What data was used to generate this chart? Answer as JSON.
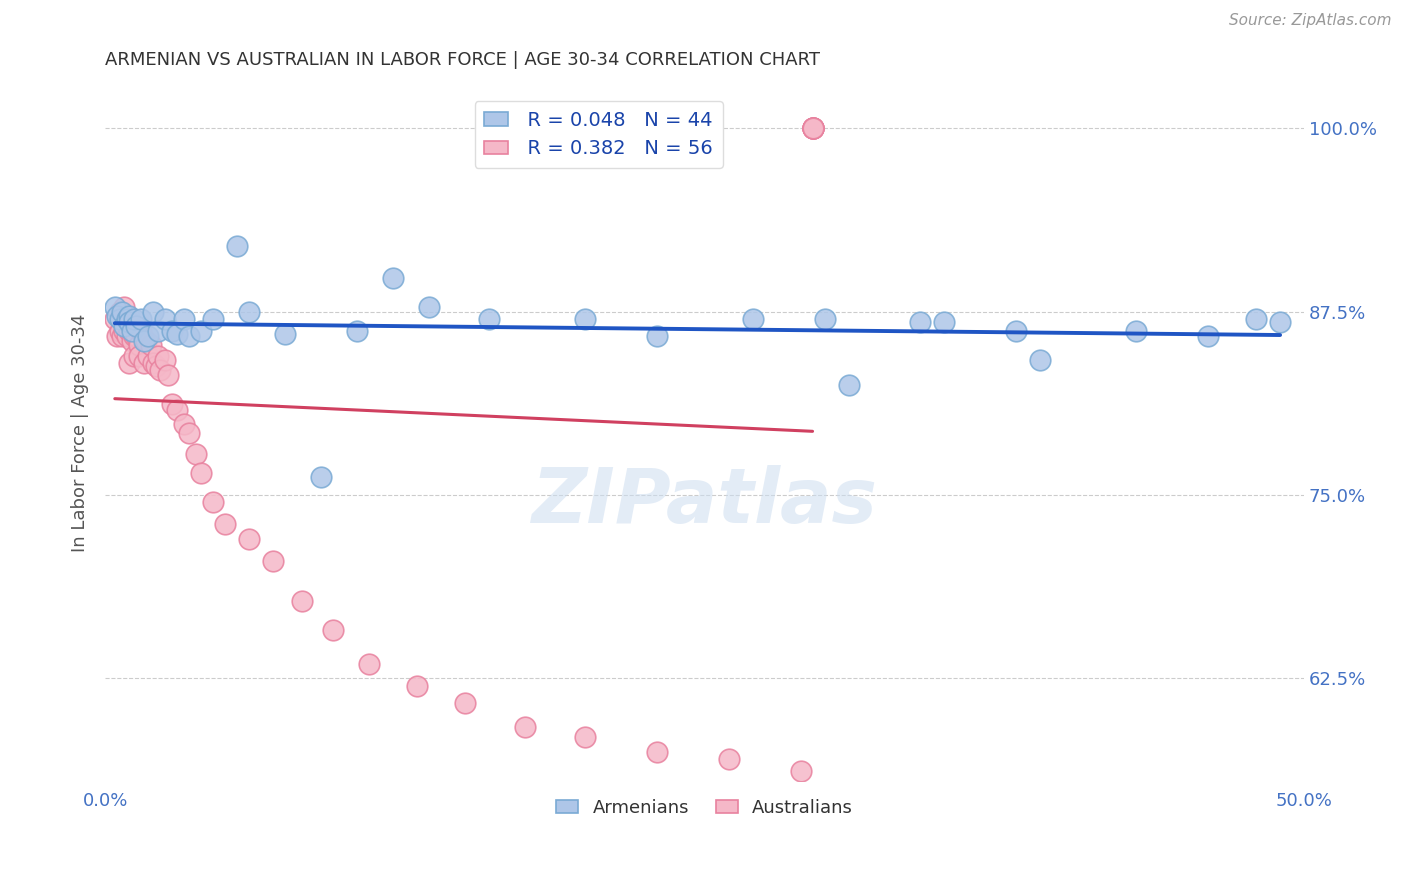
{
  "title": "ARMENIAN VS AUSTRALIAN IN LABOR FORCE | AGE 30-34 CORRELATION CHART",
  "source_text": "Source: ZipAtlas.com",
  "ylabel": "In Labor Force | Age 30-34",
  "xlim": [
    0.0,
    0.5
  ],
  "ylim": [
    0.555,
    1.03
  ],
  "xtick_positions": [
    0.0,
    0.1,
    0.2,
    0.3,
    0.4,
    0.5
  ],
  "xticklabels": [
    "0.0%",
    "",
    "",
    "",
    "",
    "50.0%"
  ],
  "ytick_positions": [
    0.625,
    0.75,
    0.875,
    1.0
  ],
  "ytick_labels": [
    "62.5%",
    "75.0%",
    "87.5%",
    "100.0%"
  ],
  "title_color": "#333333",
  "axis_color": "#4472c4",
  "background_color": "#ffffff",
  "watermark": "ZIPatlas",
  "legend_r1": "R = 0.048",
  "legend_n1": "N = 44",
  "legend_r2": "R = 0.382",
  "legend_n2": "N = 56",
  "armenian_color": "#aec6e8",
  "armenian_edge": "#7aaad4",
  "australian_color": "#f5b8c8",
  "australian_edge": "#e8819e",
  "line_blue": "#1f55c4",
  "line_pink": "#d04060",
  "arm_x": [
    0.004,
    0.005,
    0.006,
    0.007,
    0.008,
    0.009,
    0.01,
    0.01,
    0.011,
    0.012,
    0.013,
    0.015,
    0.016,
    0.018,
    0.02,
    0.022,
    0.025,
    0.028,
    0.03,
    0.033,
    0.035,
    0.04,
    0.045,
    0.055,
    0.06,
    0.075,
    0.09,
    0.105,
    0.12,
    0.135,
    0.16,
    0.2,
    0.23,
    0.27,
    0.31,
    0.35,
    0.39,
    0.43,
    0.46,
    0.48,
    0.3,
    0.34,
    0.38,
    0.49
  ],
  "arm_y": [
    0.878,
    0.872,
    0.87,
    0.875,
    0.865,
    0.87,
    0.872,
    0.868,
    0.862,
    0.87,
    0.865,
    0.87,
    0.855,
    0.858,
    0.875,
    0.862,
    0.87,
    0.862,
    0.86,
    0.87,
    0.858,
    0.862,
    0.87,
    0.92,
    0.875,
    0.86,
    0.762,
    0.862,
    0.898,
    0.878,
    0.87,
    0.87,
    0.858,
    0.87,
    0.825,
    0.868,
    0.842,
    0.862,
    0.858,
    0.87,
    0.87,
    0.868,
    0.862,
    0.868
  ],
  "aus_x": [
    0.004,
    0.005,
    0.006,
    0.006,
    0.007,
    0.007,
    0.008,
    0.008,
    0.009,
    0.009,
    0.01,
    0.01,
    0.011,
    0.011,
    0.012,
    0.012,
    0.013,
    0.014,
    0.014,
    0.015,
    0.016,
    0.017,
    0.018,
    0.019,
    0.02,
    0.021,
    0.022,
    0.023,
    0.025,
    0.026,
    0.028,
    0.03,
    0.033,
    0.035,
    0.038,
    0.04,
    0.045,
    0.05,
    0.06,
    0.07,
    0.082,
    0.095,
    0.11,
    0.13,
    0.15,
    0.175,
    0.2,
    0.23,
    0.26,
    0.29,
    0.295,
    0.295,
    0.295,
    0.295,
    0.295,
    0.295
  ],
  "aus_y": [
    0.87,
    0.858,
    0.875,
    0.862,
    0.87,
    0.858,
    0.878,
    0.862,
    0.858,
    0.87,
    0.862,
    0.84,
    0.862,
    0.855,
    0.858,
    0.845,
    0.858,
    0.852,
    0.845,
    0.862,
    0.84,
    0.855,
    0.845,
    0.852,
    0.84,
    0.838,
    0.845,
    0.835,
    0.842,
    0.832,
    0.812,
    0.808,
    0.798,
    0.792,
    0.778,
    0.765,
    0.745,
    0.73,
    0.72,
    0.705,
    0.678,
    0.658,
    0.635,
    0.62,
    0.608,
    0.592,
    0.585,
    0.575,
    0.57,
    0.562,
    1.0,
    1.0,
    1.0,
    1.0,
    1.0,
    1.0
  ]
}
